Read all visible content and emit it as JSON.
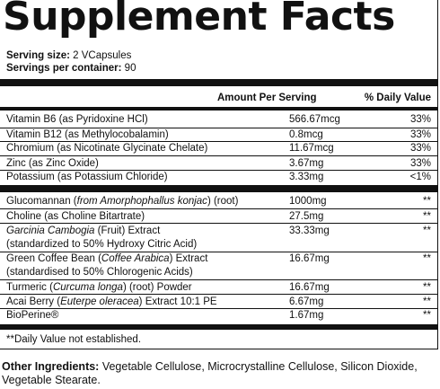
{
  "title": "Supplement Facts",
  "serving_size_label": "Serving size:",
  "serving_size_value": "2 VCapsules",
  "servings_label": "Servings per container:",
  "servings_value": "90",
  "header": {
    "amount": "Amount Per Serving",
    "daily_value": "% Daily Value"
  },
  "vitamins": [
    {
      "name": "Vitamin B6 (as Pyridoxine HCl)",
      "amount": "566.67mcg",
      "dv": "33%"
    },
    {
      "name": "Vitamin B12 (as Methylocobalamin)",
      "amount": "0.8mcg",
      "dv": "33%"
    },
    {
      "name": "Chromium (as Nicotinate Glycinate Chelate)",
      "amount": "11.67mcg",
      "dv": "33%"
    },
    {
      "name": "Zinc (as Zinc Oxide)",
      "amount": "3.67mg",
      "dv": "33%"
    },
    {
      "name": "Potassium (as Potassium Chloride)",
      "amount": "3.33mg",
      "dv": "<1%"
    }
  ],
  "botanicals": {
    "glucomannan": {
      "pre": "Glucomannan (",
      "italic": "from Amorphophallus konjac",
      "post": ") (root)",
      "amount": "1000mg",
      "dv": "**"
    },
    "choline": {
      "name": "Choline (as Choline Bitartrate)",
      "amount": "27.5mg",
      "dv": "**"
    },
    "garcinia": {
      "italic": "Garcinia Cambogia",
      "post": " (Fruit) Extract",
      "line2": "(standardized to 50% Hydroxy Citric Acid)",
      "amount": "33.33mg",
      "dv": "**"
    },
    "coffee": {
      "pre": "Green Coffee Bean (",
      "italic": "Coffee Arabica",
      "post": ") Extract",
      "line2": "(standardised to 50% Chlorogenic Acids)",
      "amount": "16.67mg",
      "dv": "**"
    },
    "turmeric": {
      "pre": "Turmeric (",
      "italic": "Curcuma longa",
      "post": ") (root) Powder",
      "amount": "16.67mg",
      "dv": "**"
    },
    "acai": {
      "pre": "Acai Berry (",
      "italic": "Euterpe oleracea",
      "post": ") Extract 10:1 PE",
      "amount": "6.67mg",
      "dv": "**"
    },
    "bioperine": {
      "name": "BioPerine®",
      "amount": "1.67mg",
      "dv": "**"
    }
  },
  "footnote": "**Daily Value not established.",
  "other_label": "Other Ingredients:",
  "other_text": " Vegetable Cellulose, Microcrystalline Cellulose, Silicon Dioxide, Vegetable Stearate."
}
